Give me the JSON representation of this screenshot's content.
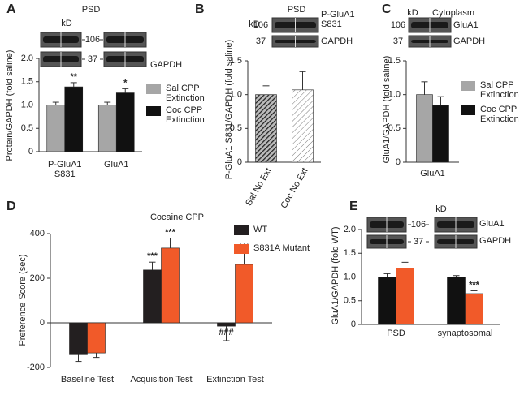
{
  "chart_data": [
    {
      "type": "bar",
      "panel": "A",
      "title": "PSD",
      "ylabel": "Protein/GAPDH (fold saline)",
      "categories": [
        "P-GluA1 S831",
        "GluA1"
      ],
      "series": [
        {
          "name": "Sal CPP Extinction",
          "color": "#a6a6a6",
          "values": [
            1.0,
            1.0
          ],
          "errors": [
            0.06,
            0.06
          ],
          "significance": [
            null,
            null
          ]
        },
        {
          "name": "Coc CPP Extinction",
          "color": "#111111",
          "values": [
            1.39,
            1.26
          ],
          "errors": [
            0.09,
            0.09
          ],
          "significance": [
            "**",
            "*"
          ]
        }
      ],
      "ylim": [
        0,
        2.0
      ],
      "yticks": [
        0,
        0.5,
        {
          "value": 1.0,
          "label": "1.0"
        },
        1.5,
        {
          "value": 2.0,
          "label": "2.0"
        }
      ],
      "legend": "right",
      "blot": {
        "unit": "kD",
        "markers": [
          "106",
          "37"
        ],
        "proteins": [
          "GAPDH"
        ]
      }
    },
    {
      "type": "bar",
      "panel": "B",
      "title": "PSD",
      "ylabel": "P-GluA1 S831/GAPDH (fold saline)",
      "categories": [
        "Sal No Ext",
        "Coc No Ext"
      ],
      "values": [
        1.0,
        1.07
      ],
      "errors": [
        0.13,
        0.27
      ],
      "patterns": [
        "dense",
        "sparse"
      ],
      "ylim": [
        0,
        1.5
      ],
      "yticks": [
        0,
        0.5,
        {
          "value": 1.0,
          "label": "1.0"
        },
        1.5
      ],
      "blot": {
        "unit": "kD",
        "markers": [
          "106",
          "37"
        ],
        "proteins": [
          "P-GluA1 S831",
          "GAPDH"
        ]
      }
    },
    {
      "type": "bar",
      "panel": "C",
      "title": "Cytoplasm",
      "ylabel": "GluA1/GAPDH (fold saline)",
      "categories": [
        "GluA1"
      ],
      "series": [
        {
          "name": "Sal CPP Extinction",
          "color": "#a6a6a6",
          "values": [
            1.0
          ],
          "errors": [
            0.19
          ],
          "significance": [
            null
          ]
        },
        {
          "name": "Coc CPP Extinction",
          "color": "#111111",
          "values": [
            0.84
          ],
          "errors": [
            0.13
          ],
          "significance": [
            null
          ]
        }
      ],
      "ylim": [
        0,
        1.5
      ],
      "yticks": [
        0,
        0.5,
        {
          "value": 1.0,
          "label": "1.0"
        },
        1.5
      ],
      "legend": "right",
      "blot": {
        "unit": "kD",
        "markers": [
          "106",
          "37"
        ],
        "proteins": [
          "GluA1",
          "GAPDH"
        ]
      }
    },
    {
      "type": "bar",
      "panel": "D",
      "title": "Cocaine CPP",
      "ylabel": "Preference Score (sec)",
      "categories": [
        "Baseline Test",
        "Acquisition Test",
        "Extinction Test"
      ],
      "series": [
        {
          "name": "WT",
          "color": "#231f20",
          "values": [
            -143,
            237,
            -15
          ],
          "errors": [
            30,
            35,
            65
          ],
          "significance": [
            null,
            "***",
            "###"
          ]
        },
        {
          "name": "S831A Mutant",
          "color": "#f15a29",
          "values": [
            -135,
            335,
            262
          ],
          "errors": [
            20,
            45,
            50
          ],
          "significance": [
            null,
            "***",
            "***"
          ]
        }
      ],
      "ylim": [
        -200,
        400
      ],
      "yticks": [
        -200,
        0,
        200,
        400
      ],
      "legend": "right"
    },
    {
      "type": "bar",
      "panel": "E",
      "ylabel": "GluA1/GAPDH (fold WT)",
      "categories": [
        "PSD",
        "synaptosomal"
      ],
      "series": [
        {
          "color": "#111111",
          "values": [
            1.0,
            1.0
          ],
          "errors": [
            0.07,
            0.03
          ],
          "significance": [
            null,
            null
          ]
        },
        {
          "color": "#f15a29",
          "values": [
            1.19,
            0.65
          ],
          "errors": [
            0.12,
            0.06
          ],
          "significance": [
            null,
            "***"
          ]
        }
      ],
      "ylim": [
        0,
        2.0
      ],
      "yticks": [
        0,
        0.5,
        {
          "value": 1.0,
          "label": "1.0"
        },
        1.5,
        {
          "value": 2.0,
          "label": "2.0"
        }
      ],
      "blot": {
        "unit": "kD",
        "markers": [
          "106",
          "37"
        ],
        "proteins": [
          "GluA1",
          "GAPDH"
        ]
      }
    }
  ]
}
